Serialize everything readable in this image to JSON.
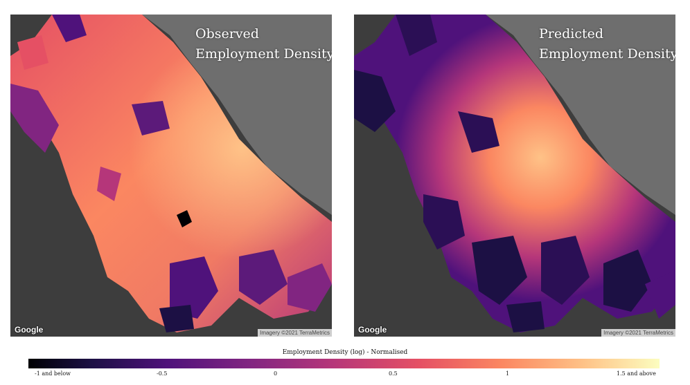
{
  "panels": {
    "left": {
      "title_line1": "Observed",
      "title_line2": "Employment Density",
      "logo": "Google",
      "attribution": "Imagery ©2021 TerraMetrics"
    },
    "right": {
      "title_line1": "Predicted",
      "title_line2": "Employment Density",
      "logo": "Google",
      "attribution": "Imagery ©2021 TerraMetrics"
    }
  },
  "legend": {
    "title": "Employment Density (log) - Normalised",
    "ticks": [
      "-1 and below",
      "-0.5",
      "0",
      "0.5",
      "1",
      "1.5 and above"
    ],
    "colormap": "magma",
    "colors": [
      "#000004",
      "#4f127b",
      "#b5367a",
      "#fb8761",
      "#fcfdbf"
    ]
  },
  "colors": {
    "water": "#6e6e6e",
    "land": "#3b3b3b"
  }
}
